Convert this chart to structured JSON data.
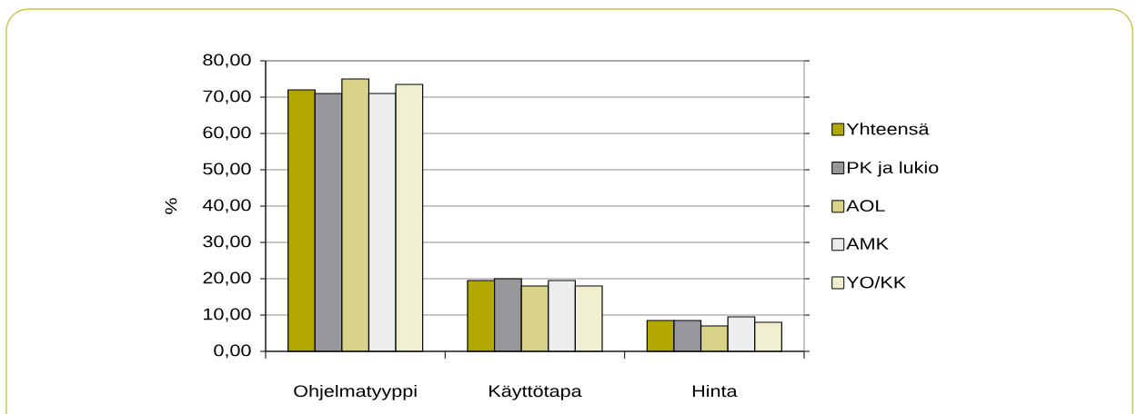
{
  "chart_data": {
    "type": "bar",
    "categories": [
      "Ohjelmatyyppi",
      "Käyttötapa",
      "Hinta"
    ],
    "ylabel": "%",
    "series": [
      {
        "name": "Yhteensä",
        "color": "#b3a800",
        "values": [
          72,
          19.5,
          8.5
        ]
      },
      {
        "name": "PK ja lukio",
        "color": "#98979c",
        "values": [
          71,
          20,
          8.5
        ]
      },
      {
        "name": "AOL",
        "color": "#d9d38a",
        "values": [
          75,
          18,
          7
        ]
      },
      {
        "name": "AMK",
        "color": "#ecedef",
        "values": [
          71,
          19.5,
          9.5
        ]
      },
      {
        "name": "YO/KK",
        "color": "#f0efd0",
        "values": [
          73.5,
          18,
          8
        ]
      }
    ],
    "ylim": [
      0,
      80
    ],
    "yticks": [
      {
        "value": 0,
        "label": "0,00"
      },
      {
        "value": 10,
        "label": "10,00"
      },
      {
        "value": 20,
        "label": "20,00"
      },
      {
        "value": 30,
        "label": "30,00"
      },
      {
        "value": 40,
        "label": "40,00"
      },
      {
        "value": 50,
        "label": "50,00"
      },
      {
        "value": 60,
        "label": "60,00"
      },
      {
        "value": 70,
        "label": "70,00"
      },
      {
        "value": 80,
        "label": "80,00"
      }
    ],
    "grid": "y",
    "legend": "right"
  }
}
